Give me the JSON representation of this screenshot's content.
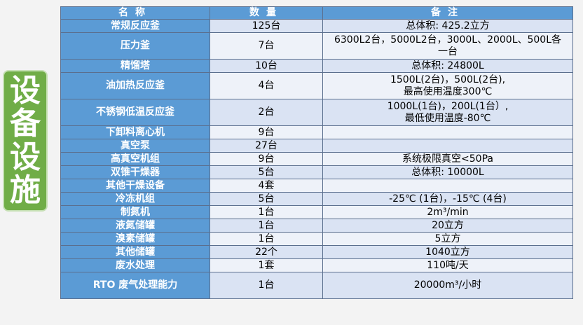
{
  "side_title": [
    "设",
    "备",
    "设",
    "施"
  ],
  "headers": [
    "名称",
    "数量",
    "备注"
  ],
  "rows": [
    {
      "name": "常规反应釜",
      "qty": "125台",
      "note": "总体积: 425.2立方",
      "h": 1
    },
    {
      "name": "压力釜",
      "qty": "7台",
      "note": "6300L2台，5000L2台，3000L、2000L、500L各\n一台",
      "h": 2
    },
    {
      "name": "精馏塔",
      "qty": "10台",
      "note": "总体积: 24800L",
      "h": 1
    },
    {
      "name": "油加热反应釜",
      "qty": "4台",
      "note": "1500L(2台)，500L(2台),\n最高使用温度300℃",
      "h": 2
    },
    {
      "name": "不锈钢低温反应釜",
      "qty": "2台",
      "note": "1000L(1台)，200L(1台）,\n最低使用温度-80℃",
      "h": 2
    },
    {
      "name": "下卸料离心机",
      "qty": "9台",
      "note": "",
      "h": 1
    },
    {
      "name": "真空泵",
      "qty": "27台",
      "note": "",
      "h": 1
    },
    {
      "name": "高真空机组",
      "qty": "9台",
      "note": "系统极限真空<50Pa",
      "h": 1
    },
    {
      "name": "双锥干燥器",
      "qty": "5台",
      "note": "总体积: 10000L",
      "h": 1
    },
    {
      "name": "其他干燥设备",
      "qty": "4套",
      "note": "",
      "h": 1
    },
    {
      "name": "冷冻机组",
      "qty": "5台",
      "note": "-25℃ (1台)，-15℃ (4台)",
      "h": 1
    },
    {
      "name": "制氮机",
      "qty": "1台",
      "note": "2m³/min",
      "h": 1
    },
    {
      "name": "液氮储罐",
      "qty": "1台",
      "note": "20立方",
      "h": 1
    },
    {
      "name": "溴素储罐",
      "qty": "1台",
      "note": "5立方",
      "h": 1
    },
    {
      "name": "其他储罐",
      "qty": "22个",
      "note": "1040立方",
      "h": 1
    },
    {
      "name": "废水处理",
      "qty": "1套",
      "note": "110吨/天",
      "h": 1
    },
    {
      "name": "RTO 废气处理能力",
      "qty": "1台",
      "note": "20000m³/小时",
      "h": 2
    }
  ],
  "colors": {
    "header_bg": "#5b9bd5",
    "row_light": "#dae3f3",
    "row_lighter": "#eef2f9",
    "side_bg": "#70ad47"
  }
}
